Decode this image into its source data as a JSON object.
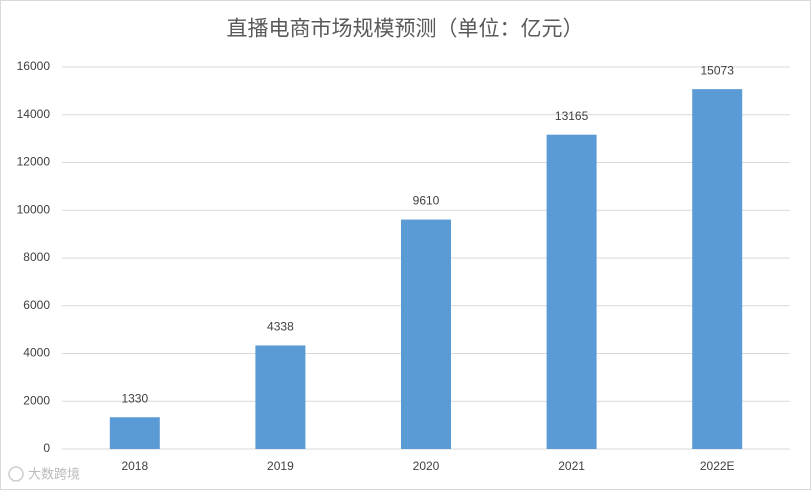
{
  "chart_data": {
    "type": "bar",
    "title": "直播电商市场规模预测（单位：亿元）",
    "categories": [
      "2018",
      "2019",
      "2020",
      "2021",
      "2022E"
    ],
    "values": [
      1330,
      4338,
      9610,
      13165,
      15073
    ],
    "color": "#5b9bd5",
    "ylim": [
      0,
      16000
    ],
    "yticks": [
      0,
      2000,
      4000,
      6000,
      8000,
      10000,
      12000,
      14000,
      16000
    ],
    "grid": true,
    "watermark": "大数跨境"
  }
}
